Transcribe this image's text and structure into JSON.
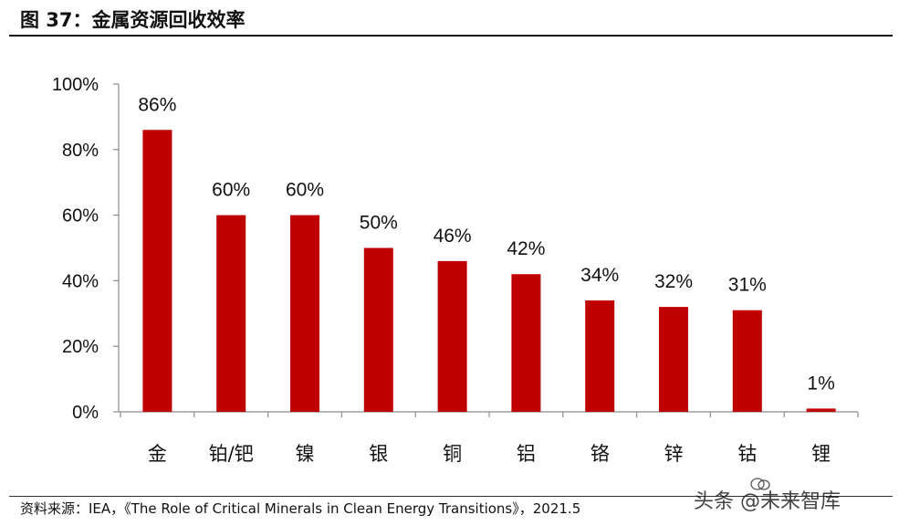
{
  "header": {
    "title": "图 37：金属资源回收效率"
  },
  "footer": {
    "source": "资料来源：IEA，《The Role of Critical Minerals in Clean Energy Transitions》，2021.5",
    "watermark": "头条 @未来智库"
  },
  "colors": {
    "bar": "#c00000",
    "axis": "#8c8c8c",
    "text": "#111111"
  },
  "chart_data": {
    "type": "bar",
    "title": "图 37：金属资源回收效率",
    "xlabel": "",
    "ylabel": "",
    "categories": [
      "金",
      "铂/钯",
      "镍",
      "银",
      "铜",
      "铝",
      "铬",
      "锌",
      "钴",
      "锂"
    ],
    "values": [
      86,
      60,
      60,
      50,
      46,
      42,
      34,
      32,
      31,
      1
    ],
    "data_labels": [
      "86%",
      "60%",
      "60%",
      "50%",
      "46%",
      "42%",
      "34%",
      "32%",
      "31%",
      "1%"
    ],
    "ylim": [
      0,
      100
    ],
    "yticks": [
      0,
      20,
      40,
      60,
      80,
      100
    ],
    "ytick_labels": [
      "0%",
      "20%",
      "40%",
      "60%",
      "80%",
      "100%"
    ],
    "grid": false,
    "legend": "none"
  }
}
